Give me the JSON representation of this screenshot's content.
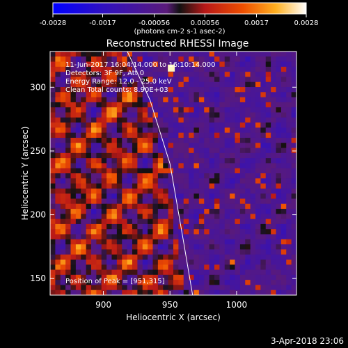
{
  "chart_data": {
    "type": "heatmap",
    "title": "Reconstructed RHESSI Image",
    "xlabel": "Heliocentric X (arcsec)",
    "ylabel": "Heliocentric Y (arcsec)",
    "xlim": [
      860,
      1045
    ],
    "ylim": [
      137,
      328
    ],
    "x_ticks": [
      900,
      950,
      1000
    ],
    "x_tick_labels": [
      "900",
      "950",
      "1000"
    ],
    "y_ticks": [
      150,
      200,
      250,
      300
    ],
    "y_tick_labels": [
      "150",
      "200",
      "250",
      "300"
    ],
    "colorbar": {
      "min": -0.0028,
      "max": 0.0028,
      "tick_values": [
        -0.0028,
        -0.0017,
        -0.00056,
        0.00056,
        0.0017,
        0.0028
      ],
      "tick_labels": [
        "-0.0028",
        "-0.0017",
        "-0.00056",
        "0.00056",
        "0.0017",
        "0.0028"
      ],
      "unit_label": "(photons cm-2 s-1 asec-2)"
    },
    "annotations": [
      "11-Jun-2017 16:04:14.000 to 16:10:14.000",
      "Detectors: 3F 9F, Att 0",
      "Energy Range: 12.0 - 25.0 keV",
      "Clean    Total counts: 8.90E+03"
    ],
    "peak_label": "Position of Peak = [951,315]",
    "peak": [
      951,
      315
    ],
    "limb_curve": [
      [
        918,
        328
      ],
      [
        935,
        290
      ],
      [
        950,
        240
      ],
      [
        960,
        180
      ],
      [
        967,
        137
      ]
    ],
    "grid": false,
    "legend": "none"
  },
  "footer": {
    "date": "3-Apr-2018 23:06"
  },
  "colors": {
    "background": "#000000",
    "axes": "#ffffff",
    "limb": "#ffffff"
  }
}
